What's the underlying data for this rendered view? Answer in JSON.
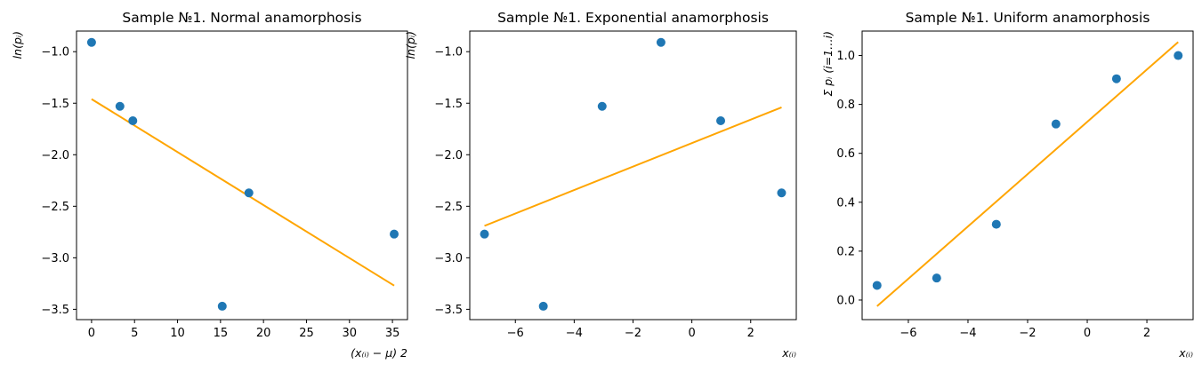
{
  "chart_data": [
    {
      "type": "scatter",
      "title": "Sample №1. Normal anamorphosis",
      "xlabel": "(x₍ᵢ₎ − μ) 2",
      "ylabel": "ln(pᵢ)",
      "xlim": [
        -1.75,
        36.75
      ],
      "ylim": [
        -3.6,
        -0.8
      ],
      "xticks": [
        0,
        5,
        10,
        15,
        20,
        25,
        30,
        35
      ],
      "yticks": [
        -3.5,
        -3.0,
        -2.5,
        -2.0,
        -1.5,
        -1.0
      ],
      "xtick_labels": [
        "0",
        "5",
        "10",
        "15",
        "20",
        "25",
        "30",
        "35"
      ],
      "ytick_labels": [
        "−3.5",
        "−3.0",
        "−2.5",
        "−2.0",
        "−1.5",
        "−1.0"
      ],
      "points": [
        {
          "x": 0.0,
          "y": -0.91
        },
        {
          "x": 3.3,
          "y": -1.53
        },
        {
          "x": 4.8,
          "y": -1.67
        },
        {
          "x": 15.2,
          "y": -3.47
        },
        {
          "x": 18.3,
          "y": -2.37
        },
        {
          "x": 35.2,
          "y": -2.77
        }
      ],
      "fit_line": [
        {
          "x": 0.0,
          "y": -1.46
        },
        {
          "x": 35.2,
          "y": -3.27
        }
      ],
      "point_color": "#1f77b4",
      "line_color": "#ffa500",
      "grid": false
    },
    {
      "type": "scatter",
      "title": "Sample №1. Exponential anamorphosis",
      "xlabel": "x₍ᵢ₎",
      "ylabel": "ln(pᵢ)",
      "xlim": [
        -7.55,
        3.55
      ],
      "ylim": [
        -3.6,
        -0.8
      ],
      "xticks": [
        -6,
        -4,
        -2,
        0,
        2
      ],
      "yticks": [
        -3.5,
        -3.0,
        -2.5,
        -2.0,
        -1.5,
        -1.0
      ],
      "xtick_labels": [
        "−6",
        "−4",
        "−2",
        "0",
        "2"
      ],
      "ytick_labels": [
        "−3.5",
        "−3.0",
        "−2.5",
        "−2.0",
        "−1.5",
        "−1.0"
      ],
      "points": [
        {
          "x": -7.05,
          "y": -2.77
        },
        {
          "x": -5.05,
          "y": -3.47
        },
        {
          "x": -3.05,
          "y": -1.53
        },
        {
          "x": -1.05,
          "y": -0.91
        },
        {
          "x": 0.98,
          "y": -1.67
        },
        {
          "x": 3.05,
          "y": -2.37
        }
      ],
      "fit_line": [
        {
          "x": -7.05,
          "y": -2.69
        },
        {
          "x": 3.05,
          "y": -1.54
        }
      ],
      "point_color": "#1f77b4",
      "line_color": "#ffa500",
      "grid": false
    },
    {
      "type": "scatter",
      "title": "Sample №1. Uniform anamorphosis",
      "xlabel": "x₍ᵢ₎",
      "ylabel": "Σ pᵢ (i=1…i)",
      "xlim": [
        -7.55,
        3.55
      ],
      "ylim": [
        -0.08,
        1.1
      ],
      "xticks": [
        -6,
        -4,
        -2,
        0,
        2
      ],
      "yticks": [
        0.0,
        0.2,
        0.4,
        0.6,
        0.8,
        1.0
      ],
      "xtick_labels": [
        "−6",
        "−4",
        "−2",
        "0",
        "2"
      ],
      "ytick_labels": [
        "0.0",
        "0.2",
        "0.4",
        "0.6",
        "0.8",
        "1.0"
      ],
      "points": [
        {
          "x": -7.05,
          "y": 0.06
        },
        {
          "x": -5.05,
          "y": 0.09
        },
        {
          "x": -3.05,
          "y": 0.31
        },
        {
          "x": -1.05,
          "y": 0.72
        },
        {
          "x": 0.98,
          "y": 0.905
        },
        {
          "x": 3.05,
          "y": 1.0
        }
      ],
      "fit_line": [
        {
          "x": -7.05,
          "y": -0.025
        },
        {
          "x": 3.05,
          "y": 1.055
        }
      ],
      "point_color": "#1f77b4",
      "line_color": "#ffa500",
      "grid": false
    }
  ]
}
